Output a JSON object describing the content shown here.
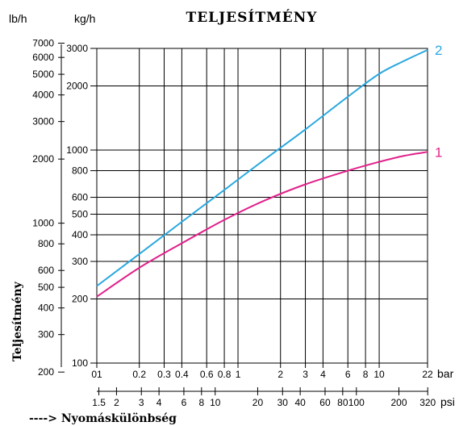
{
  "chart_data": {
    "type": "line",
    "title": "TELJESÍTMÉNY",
    "y_units": {
      "left_outer": "lb/h",
      "left_inner": "kg/h"
    },
    "x_units": {
      "primary": "bar",
      "secondary": "psi"
    },
    "ylabel": "Teljesítmény",
    "xlabel": "---->  Nyomáskülönbség",
    "x_scale": "log",
    "y_scale": "log",
    "xlim": [
      0.1,
      22
    ],
    "ylim": [
      100,
      3000
    ],
    "grid": true,
    "bar_ticks": [
      "01",
      "0.2",
      "0.3",
      "0.4",
      "0.6",
      "0.8",
      "1",
      "2",
      "3",
      "4",
      "6",
      "8",
      "10",
      "22"
    ],
    "bar_tick_values": [
      0.1,
      0.2,
      0.3,
      0.4,
      0.6,
      0.8,
      1,
      2,
      3,
      4,
      6,
      8,
      10,
      22
    ],
    "psi_ticks": [
      "1.5",
      "2",
      "3",
      "4",
      "6",
      "8",
      "10",
      "20",
      "30",
      "40",
      "60",
      "80",
      "100",
      "200",
      "320"
    ],
    "psi_tick_values": [
      1.5,
      2,
      3,
      4,
      6,
      8,
      10,
      20,
      30,
      40,
      60,
      80,
      100,
      200,
      320
    ],
    "kgh_ticks": [
      "100",
      "200",
      "300",
      "400",
      "500",
      "600",
      "800",
      "1000",
      "2000",
      "3000"
    ],
    "kgh_tick_values": [
      100,
      200,
      300,
      400,
      500,
      600,
      800,
      1000,
      2000,
      3000
    ],
    "lbh_ticks": [
      "200",
      "300",
      "400",
      "500",
      "600",
      "800",
      "1000",
      "2000",
      "3000",
      "4000",
      "5000",
      "6000",
      "7000"
    ],
    "lbh_tick_values": [
      200,
      300,
      400,
      500,
      600,
      800,
      1000,
      2000,
      3000,
      4000,
      5000,
      6000,
      7000
    ],
    "series": [
      {
        "name": "1",
        "color": "#e0218a",
        "x": [
          0.1,
          0.2,
          0.4,
          0.8,
          1.5,
          3,
          6,
          10,
          15,
          22
        ],
        "y": [
          205,
          280,
          365,
          470,
          575,
          690,
          800,
          880,
          940,
          980
        ]
      },
      {
        "name": "2",
        "color": "#2aa8e0",
        "x": [
          0.1,
          0.2,
          0.4,
          0.8,
          1.5,
          3,
          6,
          10,
          15,
          22
        ],
        "y": [
          230,
          325,
          460,
          650,
          890,
          1250,
          1780,
          2280,
          2620,
          2950
        ]
      }
    ]
  }
}
